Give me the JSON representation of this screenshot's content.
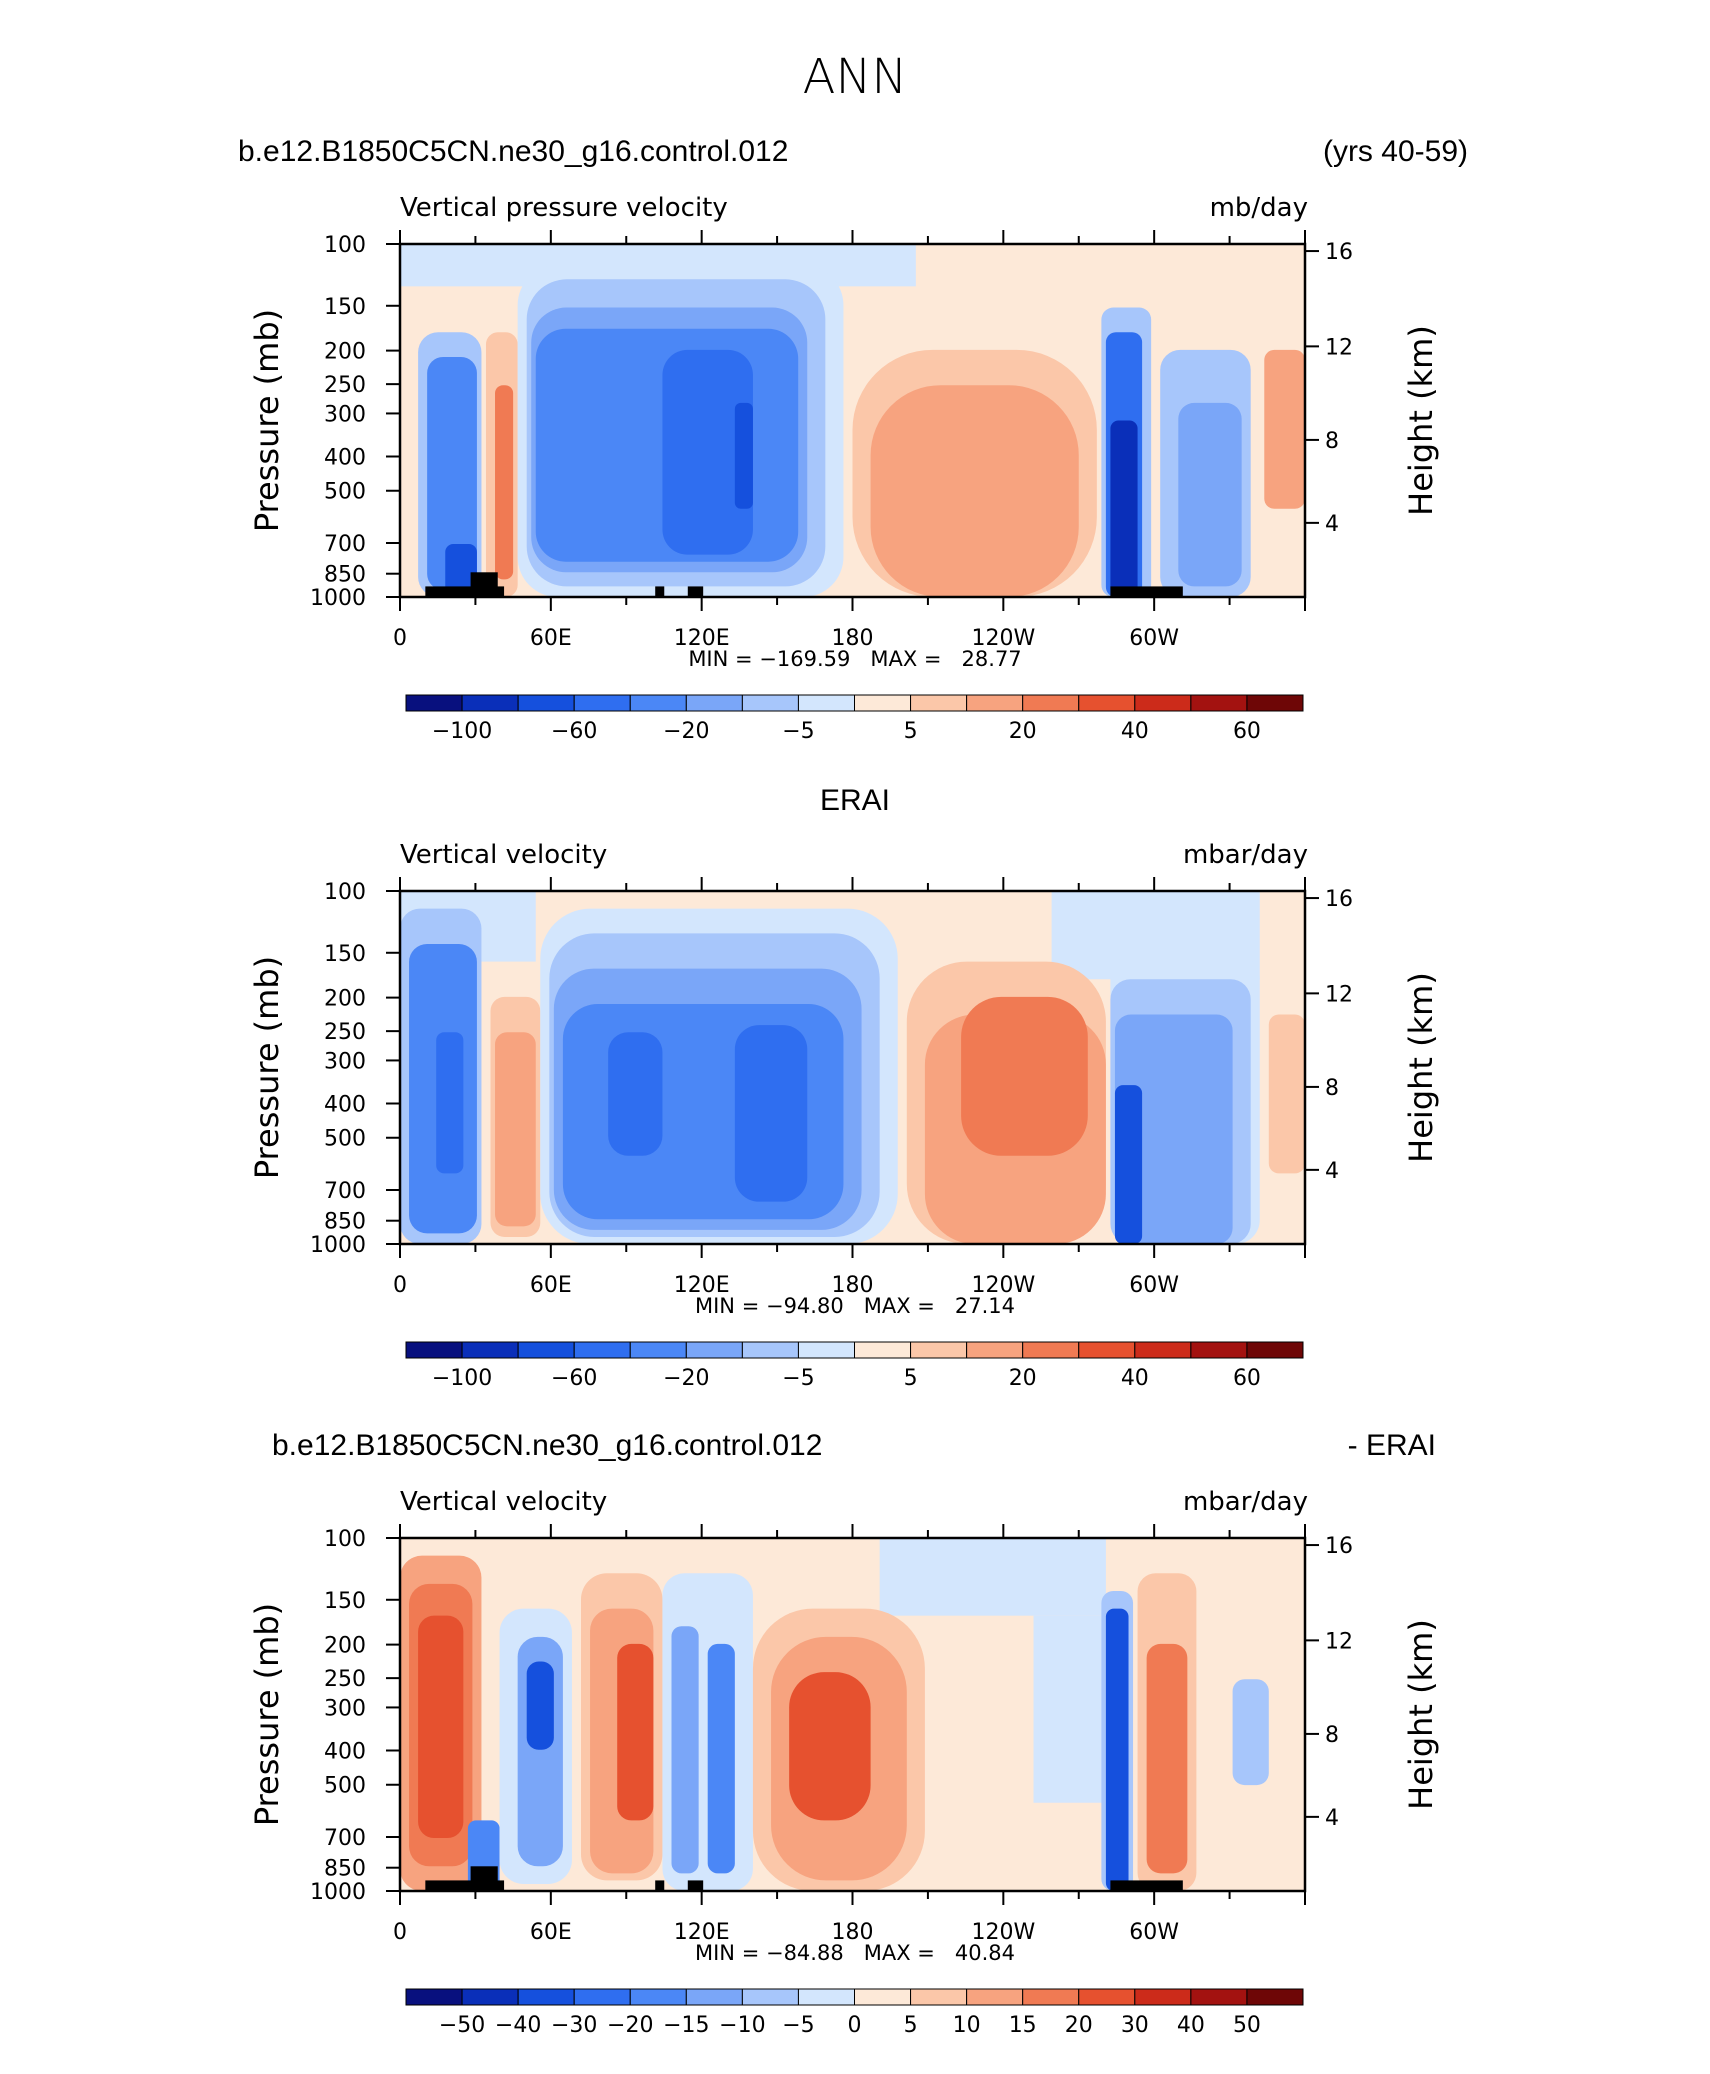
{
  "page_title": "ANN",
  "colors": {
    "scale1": [
      "#08107e",
      "#0a2fb9",
      "#1550dd",
      "#2f6ef0",
      "#4b87f6",
      "#7aa6f8",
      "#a7c6fb",
      "#d3e6fd",
      "#fde9d8",
      "#fbc7a9",
      "#f7a37f",
      "#f07a53",
      "#e6512f",
      "#cc2b1a",
      "#a31210",
      "#6e0606"
    ],
    "scale2": [
      "#08107e",
      "#0a2fb9",
      "#1550dd",
      "#2f6ef0",
      "#4b87f6",
      "#7aa6f8",
      "#a7c6fb",
      "#d3e6fd",
      "#fde9d8",
      "#fbc7a9",
      "#f7a37f",
      "#f07a53",
      "#e6512f",
      "#cc2b1a",
      "#a31210",
      "#6e0606"
    ],
    "land": "#000000"
  },
  "chart_data": [
    {
      "type": "heatmap",
      "title": "b.e12.B1850C5CN.ne30_g16.control.012",
      "title_right": "(yrs 40-59)",
      "subtitle_left": "Vertical pressure velocity",
      "subtitle_right": "mb/day",
      "ylabel": "Pressure (mb)",
      "ylabel_right": "Height (km)",
      "y_ticks": [
        "100",
        "150",
        "200",
        "250",
        "300",
        "400",
        "500",
        "700",
        "850",
        "1000"
      ],
      "y_ticks_right": [
        "16",
        "12",
        "8",
        "4"
      ],
      "x_ticks": [
        "0",
        "60E",
        "120E",
        "180",
        "120W",
        "60W"
      ],
      "stats": "MIN = −169.59   MAX =   28.77",
      "min": -169.59,
      "max": 28.77,
      "colorbar_labels": [
        "−100",
        "−60",
        "−20",
        "−5",
        "5",
        "20",
        "40",
        "60"
      ],
      "colorbar_levels": [
        -120,
        -100,
        -80,
        -60,
        -40,
        -20,
        -10,
        -5,
        0,
        5,
        10,
        20,
        30,
        40,
        50,
        60
      ]
    },
    {
      "type": "heatmap",
      "title": "ERAI",
      "subtitle_left": "Vertical velocity",
      "subtitle_right": "mbar/day",
      "ylabel": "Pressure (mb)",
      "ylabel_right": "Height (km)",
      "y_ticks": [
        "100",
        "150",
        "200",
        "250",
        "300",
        "400",
        "500",
        "700",
        "850",
        "1000"
      ],
      "y_ticks_right": [
        "16",
        "12",
        "8",
        "4"
      ],
      "x_ticks": [
        "0",
        "60E",
        "120E",
        "180",
        "120W",
        "60W"
      ],
      "stats": "MIN = −94.80   MAX =   27.14",
      "min": -94.8,
      "max": 27.14,
      "colorbar_labels": [
        "−100",
        "−60",
        "−20",
        "−5",
        "5",
        "20",
        "40",
        "60"
      ]
    },
    {
      "type": "heatmap",
      "title": "b.e12.B1850C5CN.ne30_g16.control.012",
      "title_right": "- ERAI",
      "subtitle_left": "Vertical velocity",
      "subtitle_right": "mbar/day",
      "ylabel": "Pressure (mb)",
      "ylabel_right": "Height (km)",
      "y_ticks": [
        "100",
        "150",
        "200",
        "250",
        "300",
        "400",
        "500",
        "700",
        "850",
        "1000"
      ],
      "y_ticks_right": [
        "16",
        "12",
        "8",
        "4"
      ],
      "x_ticks": [
        "0",
        "60E",
        "120E",
        "180",
        "120W",
        "60W"
      ],
      "stats": "MIN = −84.88   MAX =   40.84",
      "min": -84.88,
      "max": 40.84,
      "colorbar_labels": [
        "−50",
        "−40",
        "−30",
        "−20",
        "−15",
        "−10",
        "−5",
        "0",
        "5",
        "10",
        "15",
        "20",
        "30",
        "40",
        "50"
      ]
    }
  ]
}
